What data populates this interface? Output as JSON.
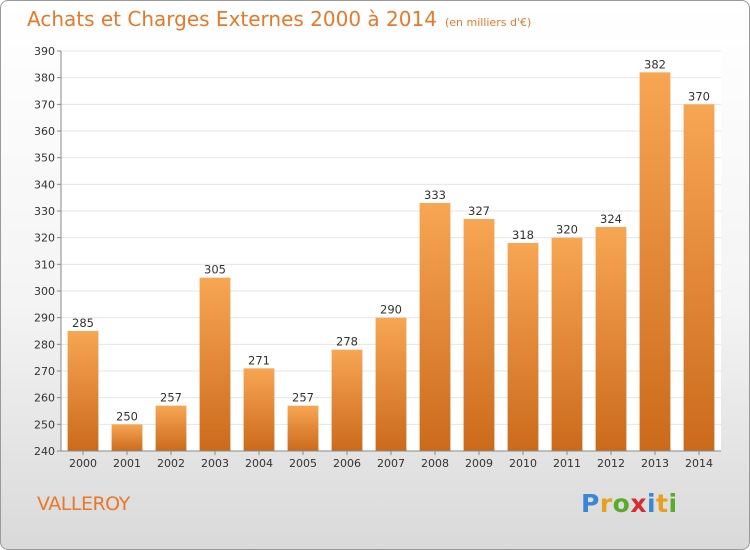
{
  "title": "Achats et Charges Externes 2000 à 2014",
  "unit": "(en milliers d'€)",
  "commune": "VALLEROY",
  "logo": {
    "letters": [
      {
        "char": "P",
        "color": "#3a86d4"
      },
      {
        "char": "r",
        "color": "#e8a020"
      },
      {
        "char": "o",
        "color": "#5aab2a"
      },
      {
        "char": "x",
        "color": "#d62e2e"
      },
      {
        "char": "i",
        "color": "#3a86d4"
      },
      {
        "char": "t",
        "color": "#e8a020"
      },
      {
        "char": "i",
        "color": "#5aab2a"
      }
    ]
  },
  "chart_data": {
    "type": "bar",
    "title": "Achats et Charges Externes 2000 à 2014",
    "subtitle": "(en milliers d'€)",
    "xlabel": "",
    "ylabel": "",
    "categories": [
      "2000",
      "2001",
      "2002",
      "2003",
      "2004",
      "2005",
      "2006",
      "2007",
      "2008",
      "2009",
      "2010",
      "2011",
      "2012",
      "2013",
      "2014"
    ],
    "values": [
      285,
      250,
      257,
      305,
      271,
      257,
      278,
      290,
      333,
      327,
      318,
      320,
      324,
      382,
      370
    ],
    "ylim": [
      240,
      390
    ],
    "yticks": [
      240,
      250,
      260,
      270,
      280,
      290,
      300,
      310,
      320,
      330,
      340,
      350,
      360,
      370,
      380,
      390
    ],
    "grid": true,
    "legend": "none",
    "bar_color_top": "#f7a654",
    "bar_color_bottom": "#cc6a1c"
  }
}
